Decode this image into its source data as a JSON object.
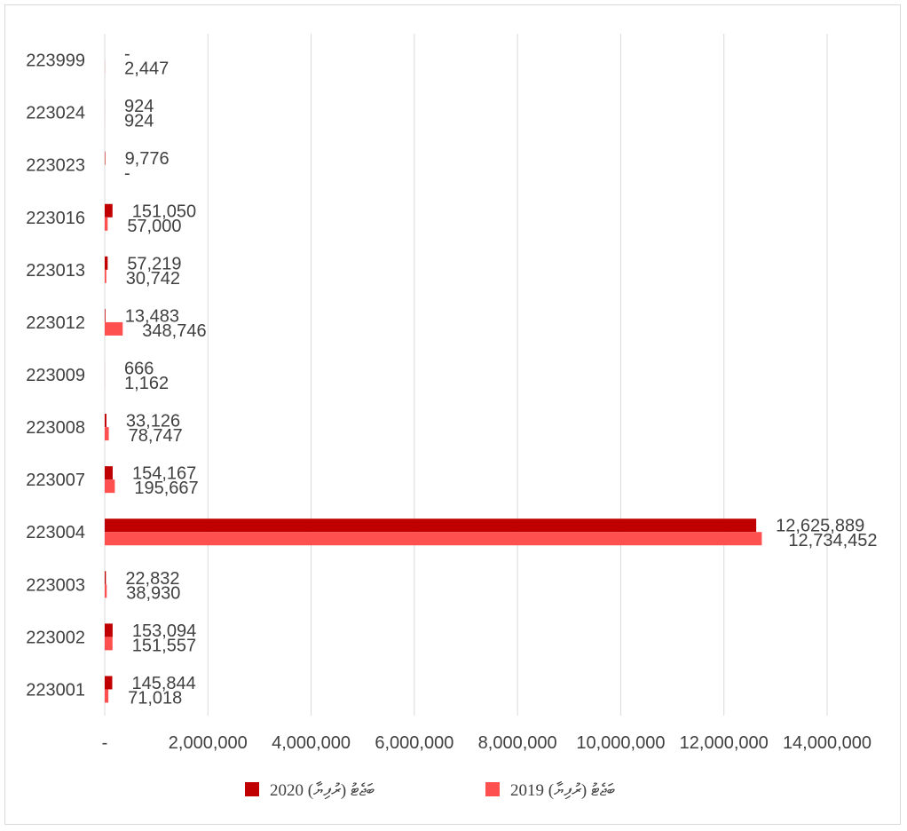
{
  "chart_data": {
    "type": "bar",
    "orientation": "horizontal",
    "categories": [
      "223001",
      "223002",
      "223003",
      "223004",
      "223007",
      "223008",
      "223009",
      "223012",
      "223013",
      "223016",
      "223023",
      "223024",
      "223999"
    ],
    "series": [
      {
        "name": "2020 ބަޖެޓު (ރުފިޔާ)",
        "color": "#c00000",
        "values": [
          145844,
          153094,
          22832,
          12625889,
          154167,
          33126,
          666,
          13483,
          57219,
          151050,
          9776,
          924,
          0
        ],
        "labels": [
          "145,844",
          "153,094",
          "22,832",
          "12,625,889",
          "154,167",
          "33,126",
          "666",
          "13,483",
          "57,219",
          "151,050",
          "9,776",
          "924",
          "-"
        ]
      },
      {
        "name": "2019 ބަޖެޓު (ރުފިޔާ)",
        "color": "#ff5050",
        "values": [
          71018,
          151557,
          38930,
          12734452,
          195667,
          78747,
          1162,
          348746,
          30742,
          57000,
          0,
          924,
          2447
        ],
        "labels": [
          "71,018",
          "151,557",
          "38,930",
          "12,734,452",
          "195,667",
          "78,747",
          "1,162",
          "348,746",
          "30,742",
          "57,000",
          "-",
          "924",
          "2,447"
        ]
      }
    ],
    "xlim": [
      0,
      14000000
    ],
    "x_ticks": [
      "-",
      "2,000,000",
      "4,000,000",
      "6,000,000",
      "8,000,000",
      "10,000,000",
      "12,000,000",
      "14,000,000"
    ],
    "x_tick_values": [
      0,
      2000000,
      4000000,
      6000000,
      8000000,
      10000000,
      12000000,
      14000000
    ],
    "grid": true,
    "legend_position": "bottom"
  }
}
